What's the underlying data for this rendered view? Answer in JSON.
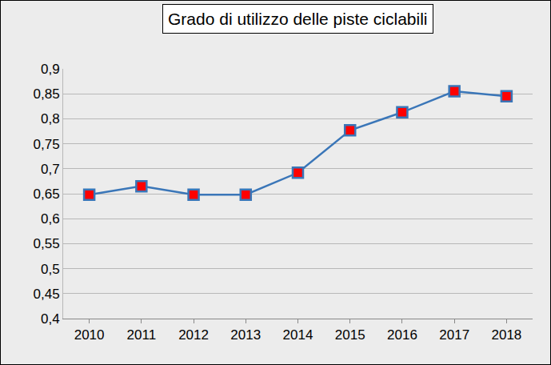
{
  "chart_data": {
    "type": "line",
    "title": "Grado di utilizzo delle piste ciclabili",
    "categories": [
      "2010",
      "2011",
      "2012",
      "2013",
      "2014",
      "2015",
      "2016",
      "2017",
      "2018"
    ],
    "values": [
      0.648,
      0.665,
      0.648,
      0.648,
      0.692,
      0.777,
      0.813,
      0.855,
      0.845
    ],
    "color": "#3a76b8",
    "marker": "square",
    "ylim": [
      0.4,
      0.9
    ],
    "yticks": [
      {
        "value": 0.4,
        "label": "0,4"
      },
      {
        "value": 0.45,
        "label": "0,45"
      },
      {
        "value": 0.5,
        "label": "0,5"
      },
      {
        "value": 0.55,
        "label": "0,55"
      },
      {
        "value": 0.6,
        "label": "0,6"
      },
      {
        "value": 0.65,
        "label": "0,65"
      },
      {
        "value": 0.7,
        "label": "0,7"
      },
      {
        "value": 0.75,
        "label": "0,75"
      },
      {
        "value": 0.8,
        "label": "0,8"
      },
      {
        "value": 0.85,
        "label": "0,85"
      },
      {
        "value": 0.9,
        "label": "0,9"
      }
    ],
    "grid": true
  }
}
